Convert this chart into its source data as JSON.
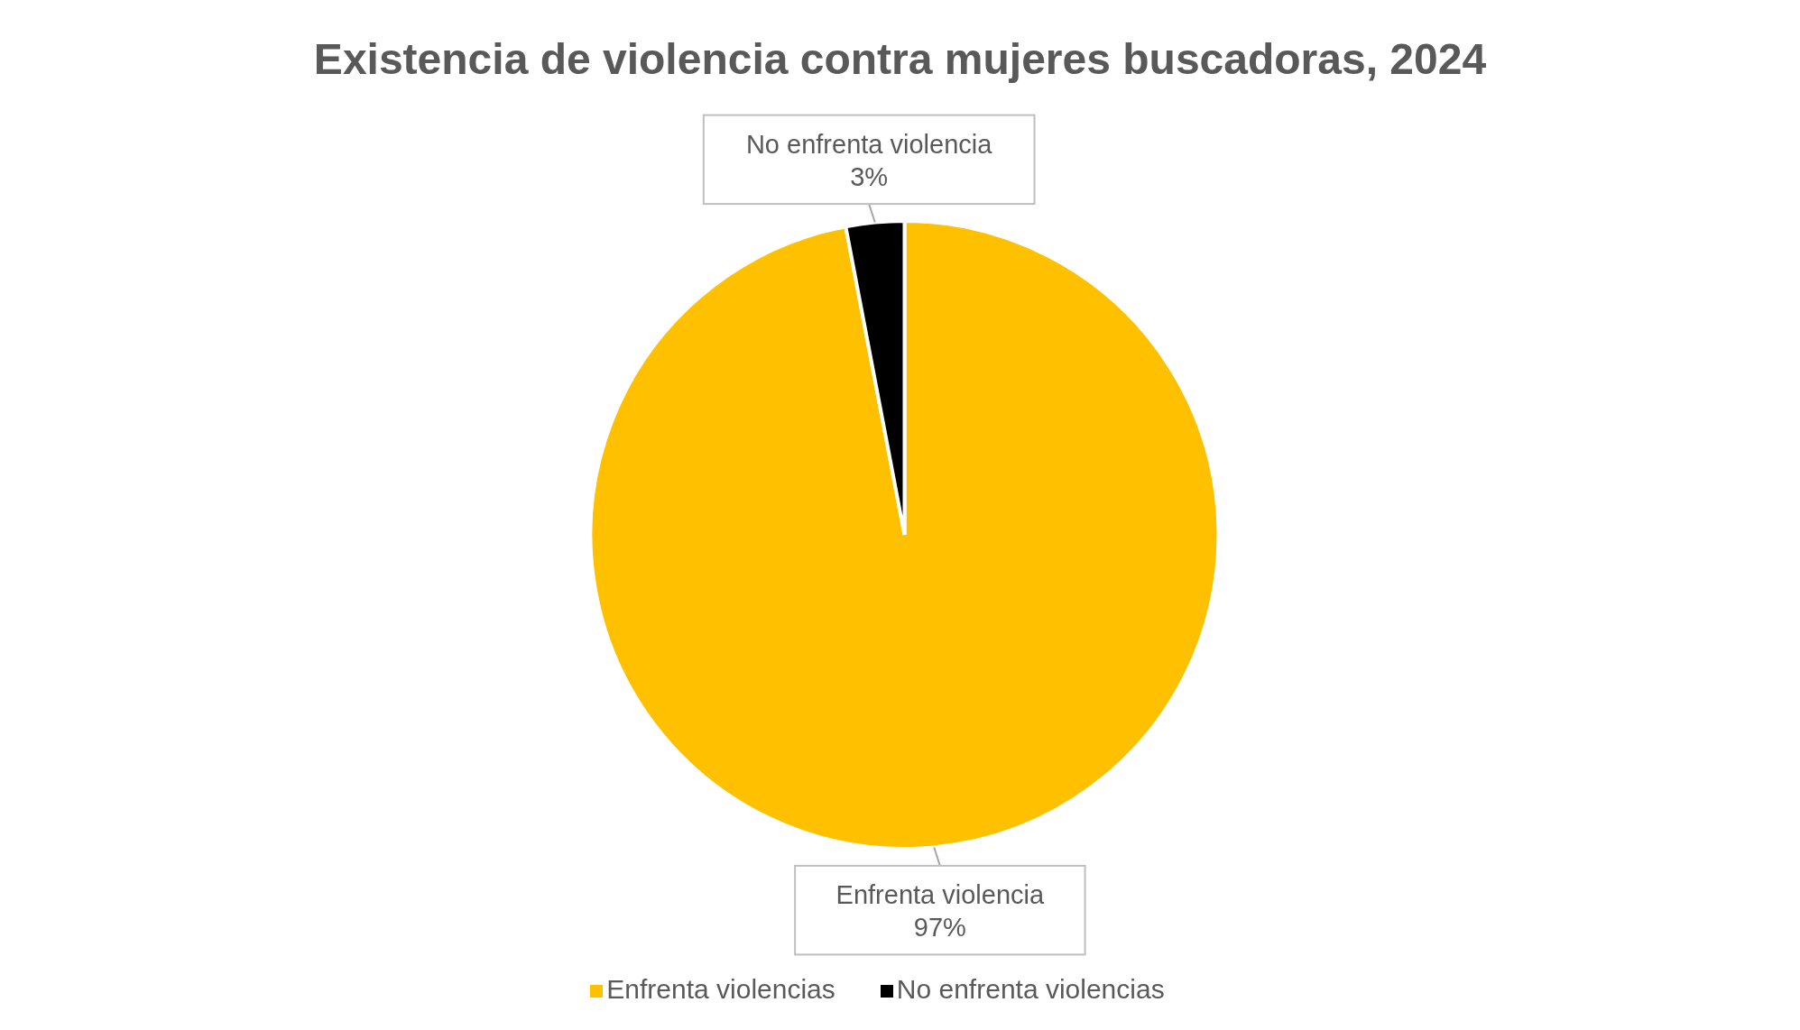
{
  "chart_data": {
    "type": "pie",
    "title": "Existencia de violencia contra mujeres buscadoras, 2024",
    "categories": [
      "Enfrenta violencias",
      "No enfrenta violencias"
    ],
    "values": [
      97,
      3
    ],
    "colors": [
      "#ffc000",
      "#000000"
    ],
    "value_labels": [
      "97%",
      "3%"
    ],
    "annotations": [
      "Enfrenta violencia",
      "No enfrenta violencia"
    ],
    "legend": "bottom"
  }
}
